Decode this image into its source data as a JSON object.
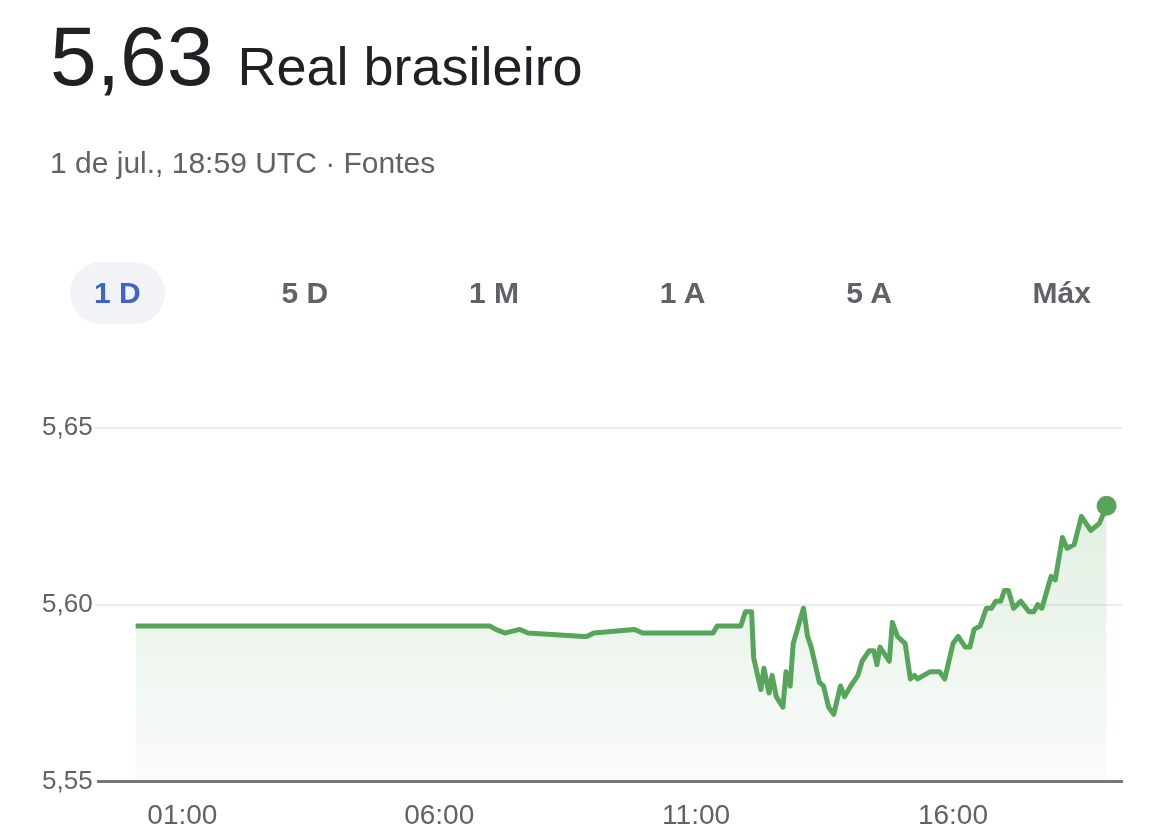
{
  "chart_data": {
    "type": "area",
    "title": "5,63",
    "subtitle": "Real brasileiro",
    "annotations": [
      "1 de jul., 18:59 UTC · Fontes",
      "1 D",
      "5 D",
      "1 M",
      "1 A",
      "5 A",
      "Máx"
    ],
    "x": [
      0.09,
      6.98,
      7.1,
      7.28,
      7.57,
      7.73,
      8.81,
      8.87,
      9.01,
      9.8,
      9.96,
      10.98,
      11.33,
      11.41,
      11.87,
      11.96,
      12.08,
      12.12,
      12.26,
      12.32,
      12.42,
      12.48,
      12.56,
      12.69,
      12.75,
      12.83,
      12.89,
      13.09,
      13.17,
      13.24,
      13.4,
      13.48,
      13.58,
      13.68,
      13.81,
      13.89,
      14.01,
      14.15,
      14.23,
      14.37,
      14.46,
      14.52,
      14.58,
      14.76,
      14.82,
      14.92,
      15.07,
      15.17,
      15.25,
      15.31,
      15.55,
      15.74,
      15.84,
      16.0,
      16.1,
      16.24,
      16.33,
      16.41,
      16.53,
      16.65,
      16.75,
      16.83,
      16.93,
      17.0,
      17.08,
      17.18,
      17.32,
      17.48,
      17.57,
      17.65,
      17.73,
      17.91,
      17.99,
      18.13,
      18.22,
      18.36,
      18.5,
      18.68,
      18.85,
      18.99
    ],
    "series": [
      {
        "color": "#57a55a",
        "values": [
          5.594,
          5.594,
          5.593,
          5.592,
          5.593,
          5.592,
          5.591,
          5.591,
          5.592,
          5.593,
          5.592,
          5.592,
          5.592,
          5.594,
          5.594,
          5.598,
          5.598,
          5.585,
          5.576,
          5.582,
          5.575,
          5.58,
          5.574,
          5.571,
          5.581,
          5.577,
          5.589,
          5.599,
          5.591,
          5.588,
          5.578,
          5.577,
          5.571,
          5.569,
          5.577,
          5.574,
          5.577,
          5.58,
          5.584,
          5.587,
          5.587,
          5.583,
          5.588,
          5.584,
          5.595,
          5.591,
          5.589,
          5.579,
          5.58,
          5.579,
          5.581,
          5.581,
          5.579,
          5.589,
          5.591,
          5.588,
          5.588,
          5.593,
          5.594,
          5.599,
          5.599,
          5.601,
          5.601,
          5.604,
          5.604,
          5.599,
          5.601,
          5.598,
          5.598,
          5.6,
          5.599,
          5.608,
          5.607,
          5.619,
          5.616,
          5.617,
          5.625,
          5.621,
          5.623,
          5.628
        ]
      }
    ],
    "xlim": [
      -0.63,
      19.29
    ],
    "xticks": [
      {
        "value": 1,
        "label": "01:00"
      },
      {
        "value": 6,
        "label": "06:00"
      },
      {
        "value": 11,
        "label": "11:00"
      },
      {
        "value": 16,
        "label": "16:00"
      }
    ],
    "ylim": [
      5.55,
      5.65
    ],
    "yticks": [
      {
        "value": 5.55,
        "label": "5,55"
      },
      {
        "value": 5.6,
        "label": "5,60"
      },
      {
        "value": 5.65,
        "label": "5,65"
      }
    ],
    "grid": "y",
    "legend": false
  }
}
